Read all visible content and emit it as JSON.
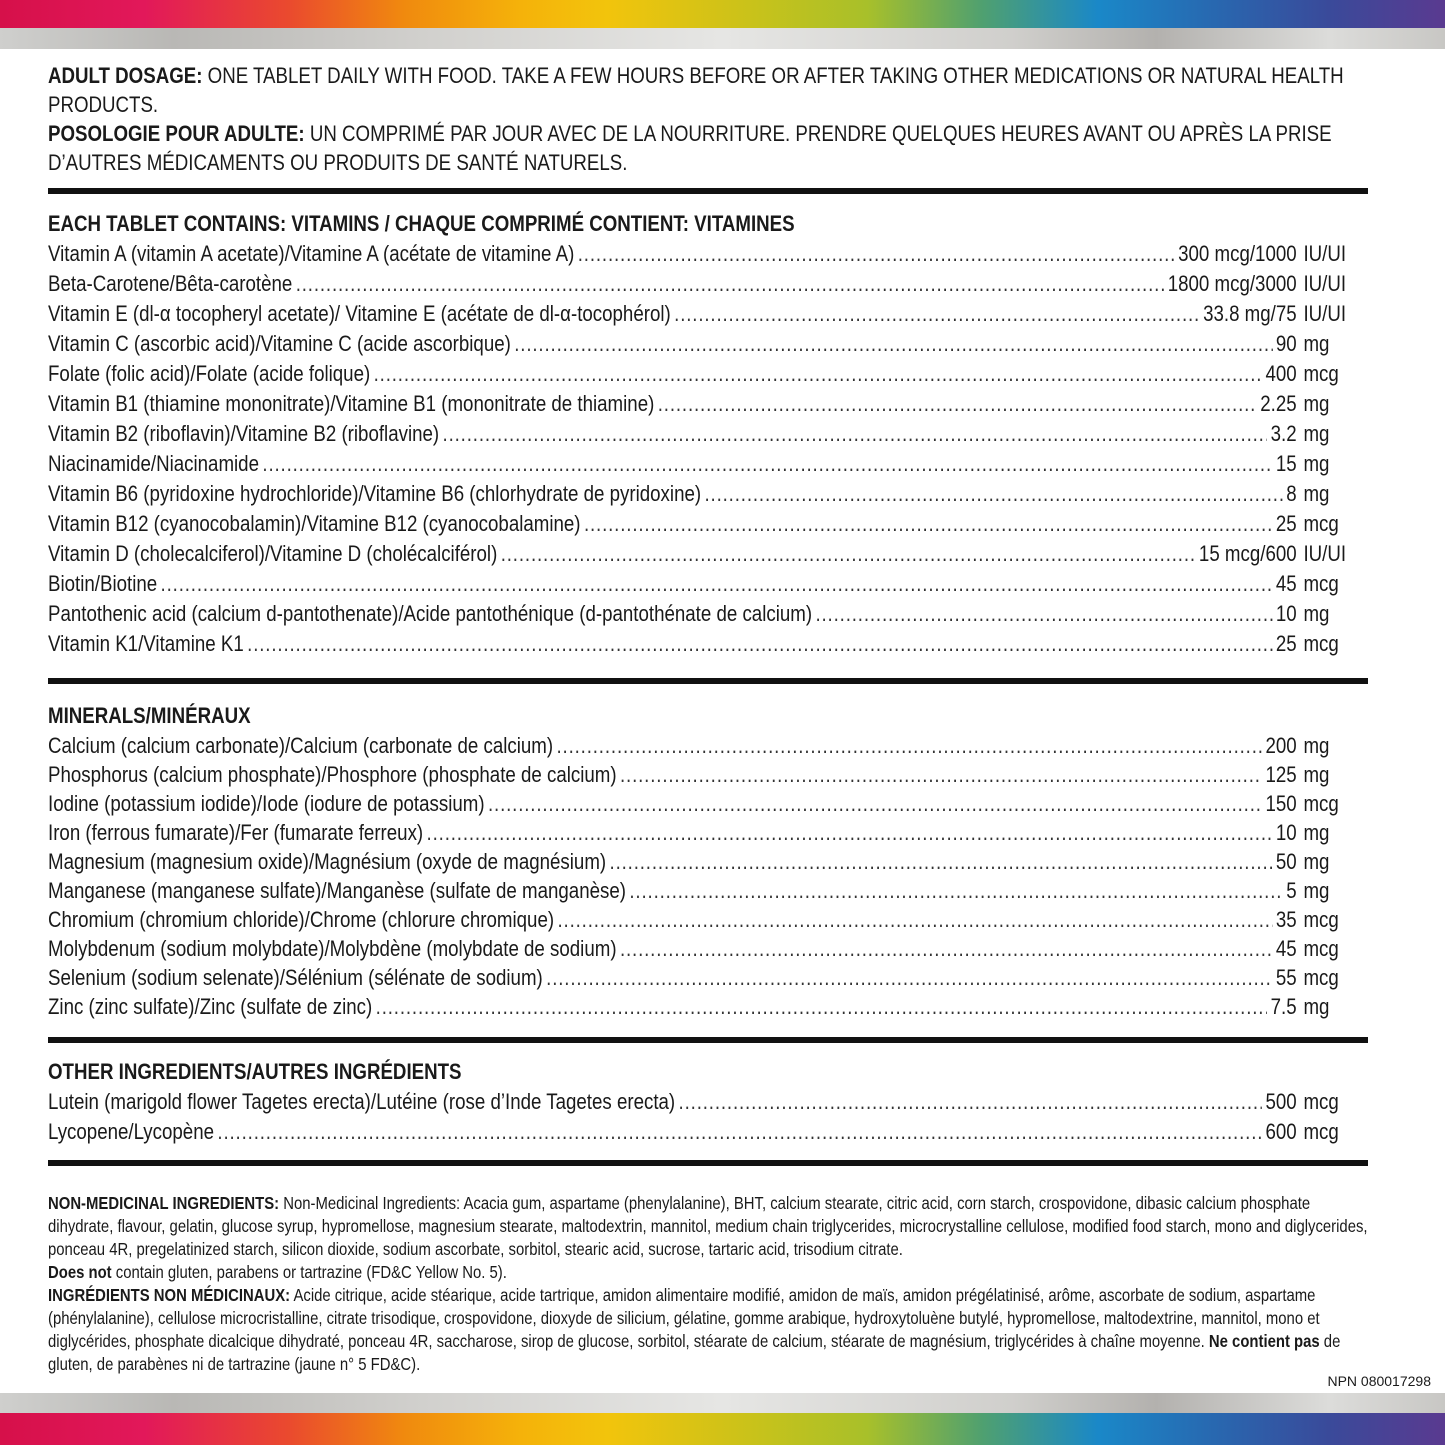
{
  "dosage": {
    "en_label": "ADULT DOSAGE:",
    "en_text": " ONE TABLET DAILY WITH FOOD. TAKE A FEW HOURS BEFORE OR AFTER TAKING OTHER MEDICATIONS OR NATURAL HEALTH PRODUCTS.",
    "fr_label": "POSOLOGIE POUR ADULTE:",
    "fr_text": " UN COMPRIMÉ PAR JOUR AVEC DE LA NOURRITURE. PRENDRE QUELQUES HEURES AVANT OU APRÈS LA PRISE D’AUTRES MÉDICAMENTS OU PRODUITS DE SANTÉ NATURELS."
  },
  "vitamins": {
    "heading": "EACH TABLET CONTAINS: VITAMINS / CHAQUE COMPRIMÉ CONTIENT: VITAMINES",
    "items": [
      {
        "name": "Vitamin A (vitamin A acetate)/Vitamine A (acétate de vitamine A)",
        "value": "300 mcg/1000",
        "unit": "IU/UI"
      },
      {
        "name": "Beta-Carotene/Bêta-carotène",
        "value": "1800 mcg/3000",
        "unit": "IU/UI"
      },
      {
        "name": "Vitamin E (dl-α tocopheryl acetate)/ Vitamine E (acétate de dl-α-tocophérol)",
        "value": "33.8 mg/75",
        "unit": "IU/UI"
      },
      {
        "name": "Vitamin C (ascorbic acid)/Vitamine C (acide ascorbique)",
        "value": "90",
        "unit": "mg"
      },
      {
        "name": "Folate (folic acid)/Folate (acide folique)",
        "value": "400",
        "unit": "mcg"
      },
      {
        "name": "Vitamin B1 (thiamine mononitrate)/Vitamine B1 (mononitrate de thiamine)",
        "value": "2.25",
        "unit": "mg"
      },
      {
        "name": "Vitamin B2 (riboflavin)/Vitamine B2 (riboflavine)",
        "value": "3.2",
        "unit": "mg"
      },
      {
        "name": "Niacinamide/Niacinamide",
        "value": "15",
        "unit": "mg"
      },
      {
        "name": "Vitamin B6 (pyridoxine hydrochloride)/Vitamine B6 (chlorhydrate de pyridoxine)",
        "value": "8",
        "unit": "mg"
      },
      {
        "name": "Vitamin B12 (cyanocobalamin)/Vitamine B12 (cyanocobalamine)",
        "value": "25",
        "unit": "mcg"
      },
      {
        "name": "Vitamin D (cholecalciferol)/Vitamine D (cholécalciférol)",
        "value": "15 mcg/600",
        "unit": "IU/UI"
      },
      {
        "name": "Biotin/Biotine",
        "value": "45",
        "unit": "mcg"
      },
      {
        "name": "Pantothenic acid (calcium d-pantothenate)/Acide pantothénique (d-pantothénate de calcium)",
        "value": "10",
        "unit": "mg"
      },
      {
        "name": "Vitamin K1/Vitamine K1",
        "value": "25",
        "unit": "mcg"
      }
    ]
  },
  "minerals": {
    "heading": "MINERALS/MINÉRAUX",
    "items": [
      {
        "name": "Calcium (calcium carbonate)/Calcium (carbonate de calcium)",
        "value": "200",
        "unit": "mg"
      },
      {
        "name": "Phosphorus (calcium phosphate)/Phosphore (phosphate de calcium)",
        "value": "125",
        "unit": "mg"
      },
      {
        "name": "Iodine (potassium iodide)/Iode (iodure de potassium)",
        "value": "150",
        "unit": "mcg"
      },
      {
        "name": "Iron (ferrous fumarate)/Fer (fumarate ferreux)",
        "value": "10",
        "unit": "mg"
      },
      {
        "name": "Magnesium (magnesium oxide)/Magnésium (oxyde de magnésium)",
        "value": "50",
        "unit": "mg"
      },
      {
        "name": "Manganese (manganese sulfate)/Manganèse (sulfate de manganèse)",
        "value": "5",
        "unit": "mg"
      },
      {
        "name": "Chromium (chromium chloride)/Chrome (chlorure chromique)",
        "value": "35",
        "unit": "mcg"
      },
      {
        "name": "Molybdenum (sodium molybdate)/Molybdène (molybdate de sodium)",
        "value": "45",
        "unit": "mcg"
      },
      {
        "name": "Selenium (sodium selenate)/Sélénium (sélénate de sodium)",
        "value": "55",
        "unit": "mcg"
      },
      {
        "name": "Zinc (zinc sulfate)/Zinc (sulfate de zinc)",
        "value": "7.5",
        "unit": "mg"
      }
    ]
  },
  "other": {
    "heading": "OTHER INGREDIENTS/AUTRES INGRÉDIENTS",
    "items": [
      {
        "name": "Lutein (marigold flower Tagetes erecta)/Lutéine (rose d’Inde Tagetes erecta)",
        "value": "500",
        "unit": "mcg"
      },
      {
        "name": "Lycopene/Lycopène",
        "value": "600",
        "unit": "mcg"
      }
    ]
  },
  "nmi": {
    "en_label": "NON-MEDICINAL INGREDIENTS:",
    "en_text": " Non-Medicinal Ingredients: Acacia gum, aspartame (phenylalanine), BHT, calcium stearate, citric acid, corn starch, crospovidone, dibasic calcium phosphate dihydrate, flavour, gelatin, glucose syrup, hypromellose, magnesium stearate, maltodextrin, mannitol, medium chain triglycerides, microcrystalline cellulose, modified food starch, mono and diglycerides, ponceau 4R, pregelatinized starch, silicon dioxide, sodium ascorbate, sorbitol, stearic acid, sucrose, tartaric acid, trisodium citrate.",
    "en_free_label": "Does not",
    "en_free_text": " contain gluten, parabens or tartrazine (FD&C Yellow No. 5).",
    "fr_label": "INGRÉDIENTS NON MÉDICINAUX:",
    "fr_text": " Acide citrique, acide stéarique, acide tartrique, amidon alimentaire modifié, amidon de maïs, amidon prégélatinisé, arôme, ascorbate de sodium, aspartame (phénylalanine), cellulose microcristalline, citrate trisodique, crospovidone, dioxyde de silicium, gélatine, gomme arabique, hydroxytoluène butylé, hypromellose, maltodextrine, mannitol, mono et diglycérides, phosphate dicalcique dihydraté, ponceau 4R, saccharose, sirop de glucose, sorbitol, stéarate de calcium, stéarate de magnésium, triglycérides à chaîne moyenne.",
    "fr_free_label": "Ne contient pas",
    "fr_free_text": " de gluten, de parabènes ni de tartrazine (jaune n° 5 FD&C)."
  },
  "npn": "NPN 080017298"
}
